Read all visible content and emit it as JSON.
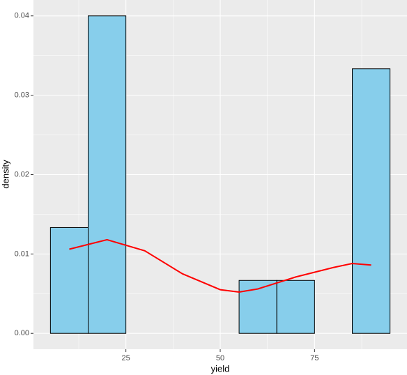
{
  "chart_data": {
    "type": "histogram",
    "x_label": "yield",
    "y_label": "density",
    "bins": [
      5,
      15,
      25,
      35,
      45,
      55,
      65,
      75,
      85,
      95
    ],
    "values": [
      0.01333,
      0.04,
      0,
      0,
      0,
      0.00667,
      0.00667,
      0,
      0.03333
    ],
    "color": "#87ceeb",
    "edge_color": "#000000",
    "density_curve": {
      "color": "#ff0000",
      "x": [
        10,
        20,
        30,
        40,
        50,
        55,
        60,
        70,
        80,
        85,
        90
      ],
      "values": [
        0.0106,
        0.0118,
        0.0104,
        0.0075,
        0.0055,
        0.0052,
        0.0056,
        0.0071,
        0.0083,
        0.0088,
        0.0086
      ]
    },
    "xlim": [
      0.5,
      99.5
    ],
    "ylim": [
      -0.002,
      0.042
    ],
    "xticks": [
      25,
      50,
      75
    ],
    "yticks": [
      {
        "value": 0,
        "label": "0.00"
      },
      {
        "value": 0.01,
        "label": "0.01"
      },
      {
        "value": 0.02,
        "label": "0.02"
      },
      {
        "value": 0.03,
        "label": "0.03"
      },
      {
        "value": 0.04,
        "label": "0.04"
      }
    ],
    "xminorticks": [
      12.5,
      37.5,
      62.5,
      87.5
    ],
    "yminorticks": [
      0.005,
      0.015,
      0.025,
      0.035
    ],
    "grid": true
  }
}
